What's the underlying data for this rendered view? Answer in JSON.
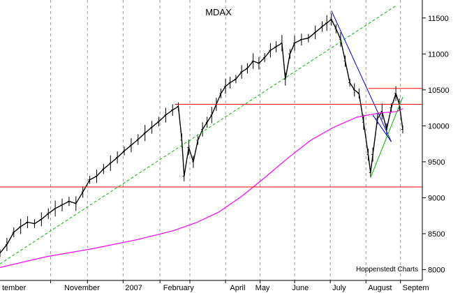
{
  "chart_data": {
    "type": "line",
    "title": "MDAX",
    "credit": "Hoppenstedt Charts",
    "ylim": [
      7850,
      11750
    ],
    "y_ticks": [
      8000,
      8500,
      9000,
      9500,
      10000,
      10500,
      11000,
      11500
    ],
    "y_tick_labels": [
      "8000",
      "8500",
      "9000",
      "9500",
      "10000",
      "10500",
      "11000",
      "11500"
    ],
    "x_labels": [
      {
        "label": "tember",
        "day": 0
      },
      {
        "label": "November",
        "day": 54
      },
      {
        "label": "2007",
        "day": 107
      },
      {
        "label": "February",
        "day": 140
      },
      {
        "label": "April",
        "day": 198
      },
      {
        "label": "May",
        "day": 220
      },
      {
        "label": "June",
        "day": 252
      },
      {
        "label": "July",
        "day": 287
      },
      {
        "label": "August",
        "day": 318
      },
      {
        "label": "Septem",
        "day": 348
      }
    ],
    "grid_days": [
      44,
      76,
      107,
      139,
      165,
      196,
      226,
      256,
      287,
      318,
      348
    ],
    "x_domain": [
      0,
      367
    ],
    "series": [
      {
        "color": "#000000",
        "style": "ohlc",
        "points": [
          [
            0,
            8230
          ],
          [
            6,
            8350
          ],
          [
            12,
            8520
          ],
          [
            18,
            8600
          ],
          [
            24,
            8660
          ],
          [
            30,
            8640
          ],
          [
            36,
            8700
          ],
          [
            42,
            8780
          ],
          [
            48,
            8850
          ],
          [
            54,
            8900
          ],
          [
            60,
            8950
          ],
          [
            66,
            8920
          ],
          [
            72,
            9080
          ],
          [
            78,
            9250
          ],
          [
            84,
            9300
          ],
          [
            90,
            9400
          ],
          [
            96,
            9480
          ],
          [
            102,
            9560
          ],
          [
            108,
            9650
          ],
          [
            114,
            9730
          ],
          [
            120,
            9810
          ],
          [
            126,
            9900
          ],
          [
            132,
            9980
          ],
          [
            138,
            10060
          ],
          [
            144,
            10150
          ],
          [
            150,
            10220
          ],
          [
            155,
            10270
          ],
          [
            158,
            9800
          ],
          [
            160,
            9300
          ],
          [
            164,
            9700
          ],
          [
            168,
            9500
          ],
          [
            172,
            9800
          ],
          [
            176,
            9950
          ],
          [
            180,
            10050
          ],
          [
            184,
            10150
          ],
          [
            188,
            10300
          ],
          [
            192,
            10450
          ],
          [
            196,
            10550
          ],
          [
            200,
            10600
          ],
          [
            205,
            10650
          ],
          [
            210,
            10750
          ],
          [
            215,
            10800
          ],
          [
            220,
            10900
          ],
          [
            225,
            10870
          ],
          [
            230,
            10950
          ],
          [
            235,
            11050
          ],
          [
            240,
            11100
          ],
          [
            245,
            11150
          ],
          [
            248,
            10650
          ],
          [
            252,
            11000
          ],
          [
            256,
            11150
          ],
          [
            262,
            11200
          ],
          [
            268,
            11220
          ],
          [
            274,
            11300
          ],
          [
            280,
            11380
          ],
          [
            284,
            11430
          ],
          [
            288,
            11480
          ],
          [
            292,
            11350
          ],
          [
            296,
            11200
          ],
          [
            300,
            10900
          ],
          [
            304,
            10600
          ],
          [
            308,
            10500
          ],
          [
            312,
            10450
          ],
          [
            316,
            10050
          ],
          [
            320,
            9600
          ],
          [
            322,
            9350
          ],
          [
            324,
            9600
          ],
          [
            328,
            10100
          ],
          [
            332,
            10200
          ],
          [
            336,
            9950
          ],
          [
            340,
            10250
          ],
          [
            344,
            10450
          ],
          [
            347,
            10300
          ],
          [
            350,
            9950
          ]
        ]
      },
      {
        "color": "#ff00ff",
        "style": "line",
        "points": [
          [
            0,
            8030
          ],
          [
            40,
            8180
          ],
          [
            80,
            8290
          ],
          [
            120,
            8420
          ],
          [
            150,
            8540
          ],
          [
            170,
            8650
          ],
          [
            190,
            8800
          ],
          [
            210,
            9020
          ],
          [
            230,
            9280
          ],
          [
            250,
            9550
          ],
          [
            270,
            9800
          ],
          [
            290,
            9980
          ],
          [
            310,
            10120
          ],
          [
            330,
            10180
          ],
          [
            345,
            10200
          ],
          [
            350,
            10240
          ]
        ]
      }
    ],
    "lines": [
      {
        "name": "",
        "color": "#ff0000",
        "points": [
          [
            0,
            9150
          ],
          [
            367,
            9150
          ]
        ]
      },
      {
        "name": "",
        "color": "#ff0000",
        "points": [
          [
            152,
            10300
          ],
          [
            367,
            10300
          ]
        ]
      },
      {
        "name": "",
        "color": "#ff0000",
        "points": [
          [
            320,
            10520
          ],
          [
            367,
            10520
          ]
        ]
      },
      {
        "name": "",
        "color": "#00bb00",
        "dash": true,
        "points": [
          [
            0,
            8080
          ],
          [
            345,
            11680
          ]
        ]
      },
      {
        "name": "",
        "color": "#0000cc",
        "points": [
          [
            288,
            11600
          ],
          [
            340,
            9780
          ]
        ]
      },
      {
        "name": "",
        "color": "#0000cc",
        "points": [
          [
            324,
            10150
          ],
          [
            340,
            9780
          ]
        ]
      },
      {
        "name": "",
        "color": "#00bb00",
        "points": [
          [
            322,
            9280
          ],
          [
            350,
            10400
          ]
        ]
      }
    ]
  }
}
